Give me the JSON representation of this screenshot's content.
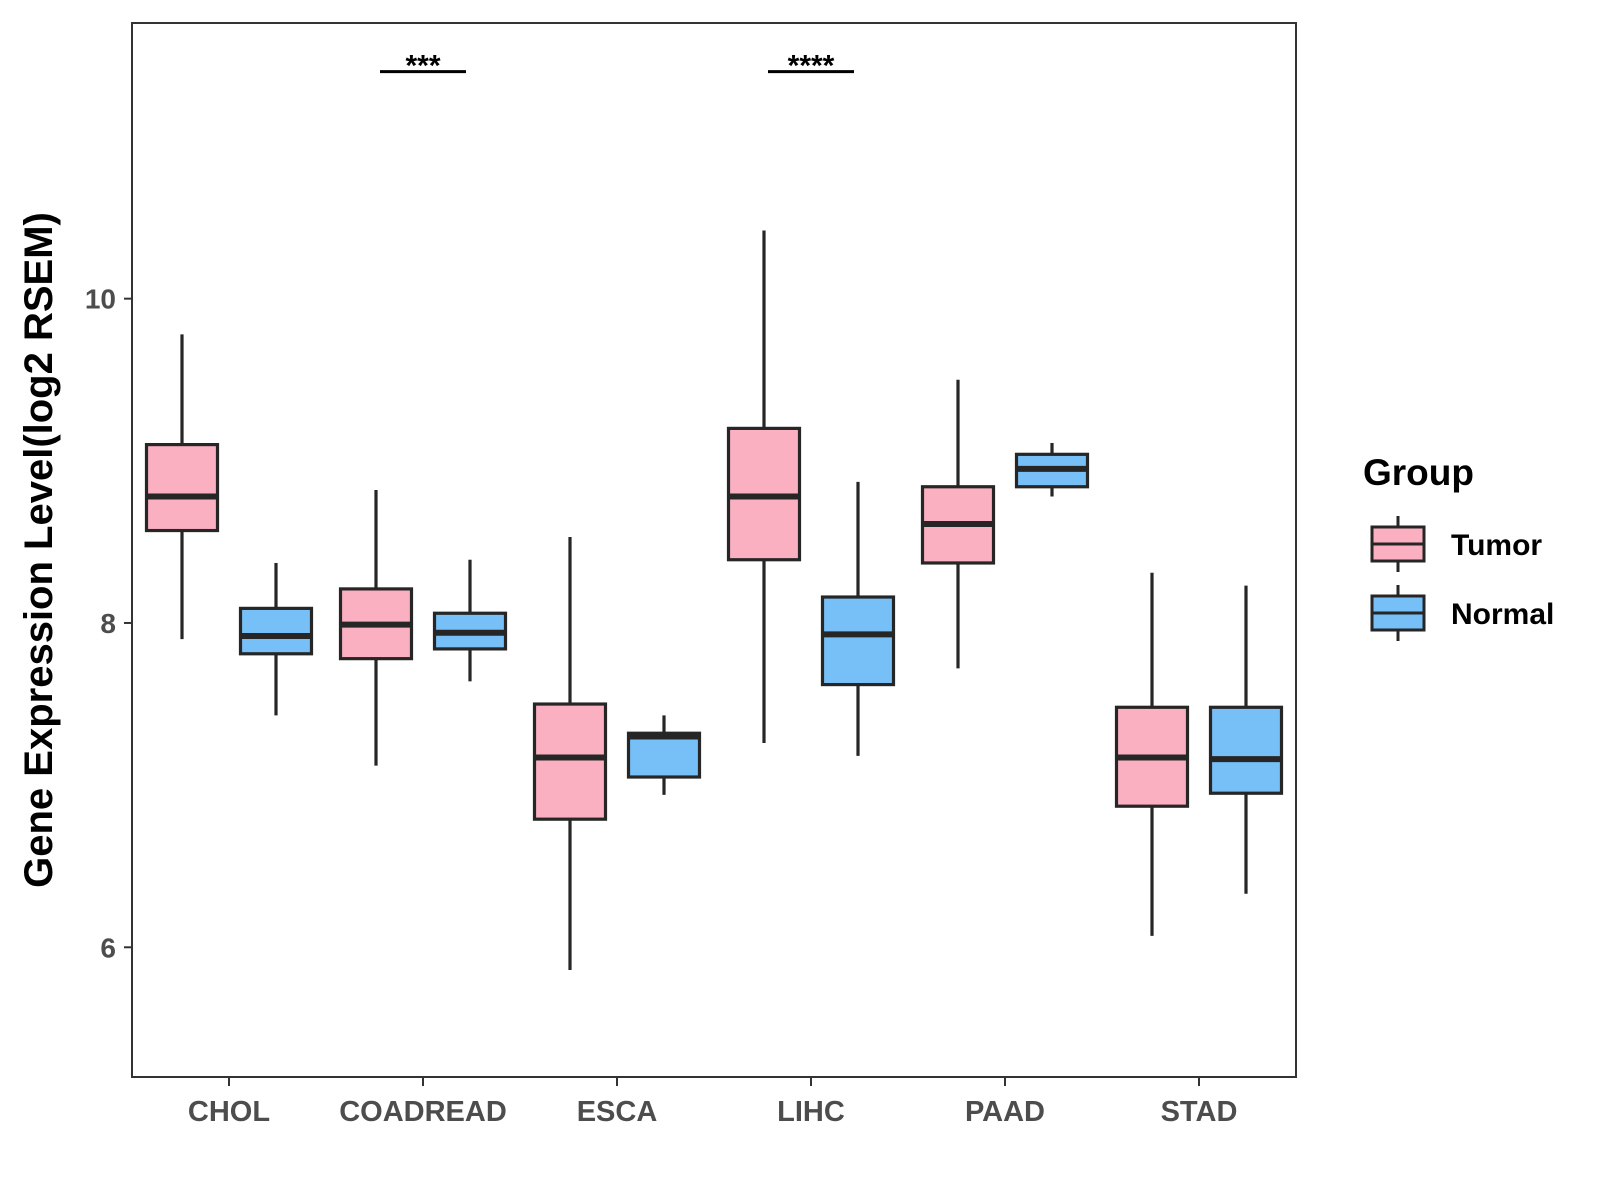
{
  "chart_data": {
    "type": "boxplot",
    "ylabel": "Gene Expression Level(log2 RSEM)",
    "xlabel": "",
    "ylim": [
      5.2,
      11.7
    ],
    "yticks": [
      6,
      8,
      10
    ],
    "categories": [
      "CHOL",
      "COADREAD",
      "ESCA",
      "LIHC",
      "PAAD",
      "STAD"
    ],
    "legend": {
      "title": "Group",
      "position": "right",
      "entries": [
        {
          "name": "Tumor",
          "color": "#fbb0c2"
        },
        {
          "name": "Normal",
          "color": "#77c0f7"
        }
      ]
    },
    "series": [
      {
        "name": "Tumor",
        "color": "#fbb0c2",
        "boxes": [
          {
            "category": "CHOL",
            "min": 7.9,
            "q1": 8.57,
            "median": 8.78,
            "q3": 9.1,
            "max": 9.78
          },
          {
            "category": "COADREAD",
            "min": 7.12,
            "q1": 7.78,
            "median": 7.99,
            "q3": 8.21,
            "max": 8.82
          },
          {
            "category": "ESCA",
            "min": 5.86,
            "q1": 6.79,
            "median": 7.17,
            "q3": 7.5,
            "max": 8.53
          },
          {
            "category": "LIHC",
            "min": 7.26,
            "q1": 8.39,
            "median": 8.78,
            "q3": 9.2,
            "max": 10.42
          },
          {
            "category": "PAAD",
            "min": 7.72,
            "q1": 8.37,
            "median": 8.61,
            "q3": 8.84,
            "max": 9.5
          },
          {
            "category": "STAD",
            "min": 6.07,
            "q1": 6.87,
            "median": 7.17,
            "q3": 7.48,
            "max": 8.31
          }
        ]
      },
      {
        "name": "Normal",
        "color": "#77c0f7",
        "boxes": [
          {
            "category": "CHOL",
            "min": 7.43,
            "q1": 7.81,
            "median": 7.92,
            "q3": 8.09,
            "max": 8.37
          },
          {
            "category": "COADREAD",
            "min": 7.64,
            "q1": 7.84,
            "median": 7.94,
            "q3": 8.06,
            "max": 8.39
          },
          {
            "category": "ESCA",
            "min": 6.94,
            "q1": 7.05,
            "median": 7.3,
            "q3": 7.32,
            "max": 7.43
          },
          {
            "category": "LIHC",
            "min": 7.18,
            "q1": 7.62,
            "median": 7.93,
            "q3": 8.16,
            "max": 8.87
          },
          {
            "category": "PAAD",
            "min": 8.78,
            "q1": 8.84,
            "median": 8.95,
            "q3": 9.04,
            "max": 9.11
          },
          {
            "category": "STAD",
            "min": 6.33,
            "q1": 6.95,
            "median": 7.16,
            "q3": 7.48,
            "max": 8.23
          }
        ]
      }
    ],
    "annotations": [
      {
        "category": "COADREAD",
        "label": "***",
        "y": 11.4
      },
      {
        "category": "LIHC",
        "label": "****",
        "y": 11.4
      }
    ]
  }
}
